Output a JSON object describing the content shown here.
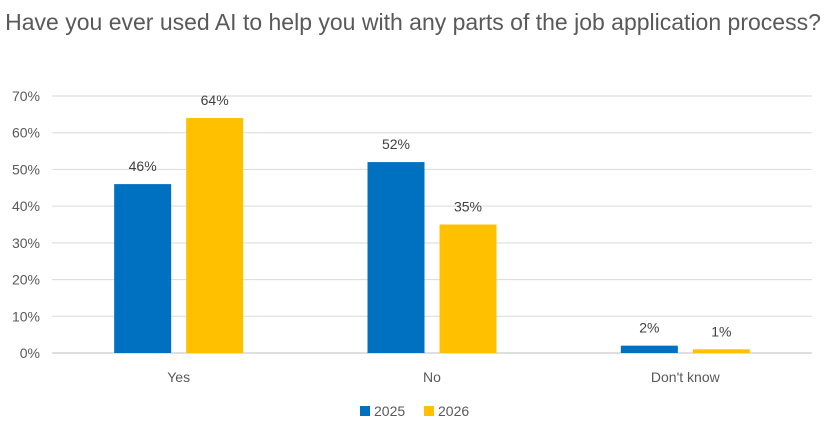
{
  "chart_data": {
    "type": "bar",
    "title": "Have you ever used AI to help you with any parts of the job application process?",
    "categories": [
      "Yes",
      "No",
      "Don't know"
    ],
    "series": [
      {
        "name": "2025",
        "values": [
          46,
          52,
          2
        ],
        "color": "#0070C0"
      },
      {
        "name": "2026",
        "values": [
          64,
          35,
          1
        ],
        "color": "#FFC000"
      }
    ],
    "data_labels": [
      [
        "46%",
        "52%",
        "2%"
      ],
      [
        "64%",
        "35%",
        "1%"
      ]
    ],
    "yticks": [
      "0%",
      "10%",
      "20%",
      "30%",
      "40%",
      "50%",
      "60%",
      "70%"
    ],
    "ylim": [
      0,
      70
    ],
    "grid": true,
    "legend": "bottom",
    "xlabel": "",
    "ylabel": ""
  }
}
